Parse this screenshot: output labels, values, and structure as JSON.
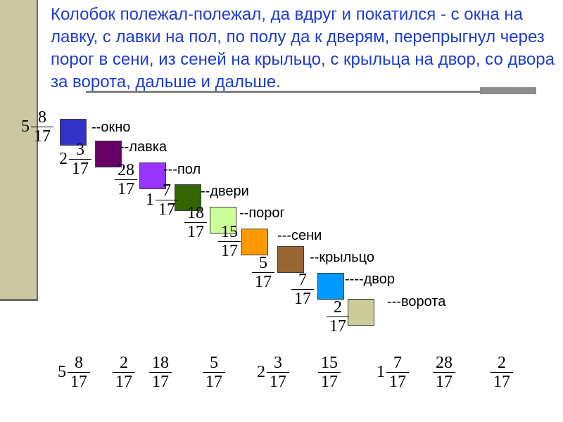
{
  "title": "Колобок полежал-полежал, да вдруг и покатился - с окна на лавку, с лавки на пол, по полу да к дверям, перепрыгнул через порог в сени, из сеней на крыльцо, с крыльца на двор, со двора за ворота, дальше и дальше.",
  "steps": [
    {
      "label": "окно",
      "dashes": "--",
      "color": "#3333cc",
      "fraction": {
        "whole": "5",
        "num": "8",
        "den": "17"
      }
    },
    {
      "label": "лавка",
      "dashes": "--",
      "color": "#660066",
      "fraction": {
        "whole": "2",
        "num": "3",
        "den": "17"
      }
    },
    {
      "label": "пол",
      "dashes": "---",
      "color": "#9933ff",
      "fraction": {
        "whole": "",
        "num": "28",
        "den": "17"
      }
    },
    {
      "label": "двери",
      "dashes": "--",
      "color": "#336600",
      "fraction": {
        "whole": "1",
        "num": "7",
        "den": "17"
      }
    },
    {
      "label": "порог",
      "dashes": "--",
      "color": "#ccff99",
      "fraction": {
        "whole": "",
        "num": "18",
        "den": "17"
      }
    },
    {
      "label": "сени",
      "dashes": "---",
      "color": "#ff9900",
      "fraction": {
        "whole": "",
        "num": "15",
        "den": "17"
      }
    },
    {
      "label": "крыльцо",
      "dashes": "--",
      "color": "#996633",
      "fraction": {
        "whole": "",
        "num": "5",
        "den": "17"
      }
    },
    {
      "label": "двор",
      "dashes": "----",
      "color": "#0099ff",
      "fraction": {
        "whole": "",
        "num": "7",
        "den": "17"
      }
    },
    {
      "label": "ворота",
      "dashes": "---",
      "color": "#cccc99",
      "fraction": {
        "whole": "",
        "num": "2",
        "den": "17"
      }
    }
  ],
  "bottom_fractions": [
    {
      "whole": "5",
      "num": "8",
      "den": "17"
    },
    {
      "whole": "",
      "num": "2",
      "den": "17"
    },
    {
      "whole": "",
      "num": "18",
      "den": "17"
    },
    {
      "whole": "",
      "num": "5",
      "den": "17"
    },
    {
      "whole": "2",
      "num": "3",
      "den": "17"
    },
    {
      "whole": "",
      "num": "15",
      "den": "17"
    },
    {
      "whole": "1",
      "num": "7",
      "den": "17"
    },
    {
      "whole": "",
      "num": "28",
      "den": "17"
    },
    {
      "whole": "",
      "num": "2",
      "den": "17"
    }
  ]
}
